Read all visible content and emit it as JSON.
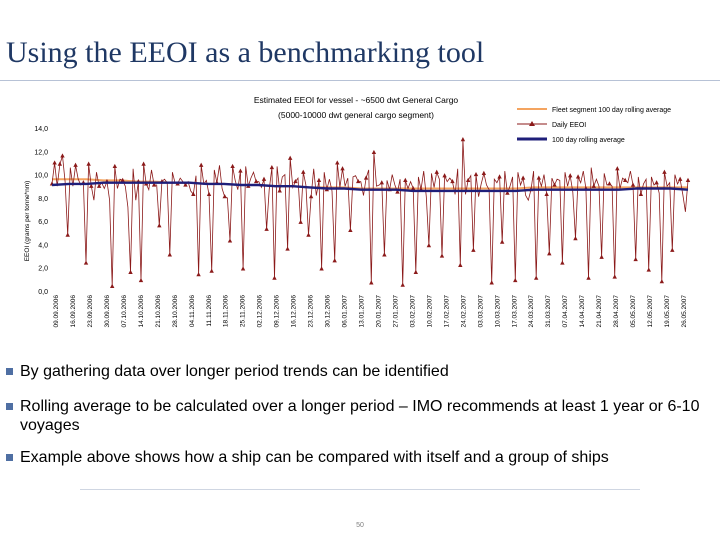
{
  "slide": {
    "title": "Using the EEOI as a benchmarking tool",
    "page_number": "50"
  },
  "bullets": [
    "By gathering data over longer period trends can be identified",
    "Rolling average to be calculated over a longer period – IMO recommends at least 1 year or 6-10 voyages",
    "Example above shows how a ship can be compared with itself and a group of ships"
  ],
  "chart_data": {
    "type": "line",
    "title": "Estimated EEOI for vessel - ~6500 dwt General Cargo",
    "subtitle": "(5000-10000 dwt general cargo segment)",
    "ylabel": "EEOI (grams per tonne*nm)",
    "xlabel": "",
    "ylim": [
      0,
      14
    ],
    "yticks": [
      "0,0",
      "2,0",
      "4,0",
      "6,0",
      "8,0",
      "10,0",
      "12,0",
      "14,0"
    ],
    "grid": false,
    "legend_position": "top-right",
    "colors": {
      "fleet_avg": "#f4a460",
      "daily": "#8b1a1a",
      "rolling_avg": "#1f1f7a"
    },
    "x_tick_labels": [
      "09.09.2006",
      "16.09.2006",
      "23.09.2006",
      "30.09.2006",
      "07.10.2006",
      "14.10.2006",
      "21.10.2006",
      "28.10.2006",
      "04.11.2006",
      "11.11.2006",
      "18.11.2006",
      "25.11.2006",
      "02.12.2006",
      "09.12.2006",
      "16.12.2006",
      "23.12.2006",
      "30.12.2006",
      "06.01.2007",
      "13.01.2007",
      "20.01.2007",
      "27.01.2007",
      "03.02.2007",
      "10.02.2007",
      "17.02.2007",
      "24.02.2007",
      "03.03.2007",
      "10.03.2007",
      "17.03.2007",
      "24.03.2007",
      "31.03.2007",
      "07.04.2007",
      "14.04.2007",
      "21.04.2007",
      "28.04.2007",
      "05.05.2007",
      "12.05.2007",
      "19.05.2007",
      "26.05.2007"
    ],
    "series": [
      {
        "name": "Fleet segment 100 day rolling average",
        "values": [
          9.6,
          9.6,
          9.6,
          9.5,
          9.5,
          9.4,
          9.4,
          9.3,
          9.3,
          9.2,
          9.2,
          9.1,
          9.1,
          9.0,
          9.0,
          8.9,
          8.9,
          8.9,
          8.8,
          8.8,
          8.8,
          8.8,
          8.8,
          8.8,
          8.8,
          8.8,
          8.8,
          8.8,
          8.9,
          8.9,
          8.9,
          8.9,
          8.9,
          8.9,
          8.9,
          8.9,
          8.9,
          8.9
        ]
      },
      {
        "name": "Daily EEOI",
        "values": [
          9.2,
          11.0,
          9.0,
          10.9,
          11.6,
          9.4,
          4.8,
          10.6,
          9.0,
          10.8,
          9.6,
          9.1,
          9.3,
          2.4,
          10.9,
          9.0,
          7.8,
          10.2,
          9.0,
          9.3,
          8.8,
          9.4,
          7.8,
          0.4,
          10.7,
          8.8,
          9.6,
          9.5,
          9.0,
          7.2,
          1.6,
          10.5,
          7.8,
          9.4,
          0.9,
          10.9,
          9.2,
          8.7,
          10.4,
          9.1,
          9.1,
          5.6,
          9.4,
          9.6,
          9.3,
          3.1,
          10.2,
          9.3,
          9.2,
          9.7,
          9.4,
          9.1,
          9.4,
          8.6,
          8.3,
          9.9,
          1.4,
          10.8,
          9.2,
          9.5,
          8.3,
          1.7,
          10.4,
          9.3,
          10.8,
          8.8,
          8.1,
          8.0,
          4.3,
          10.7,
          9.5,
          8.7,
          10.3,
          1.9,
          10.7,
          9.0,
          9.7,
          10.2,
          9.4,
          9.4,
          8.9,
          9.6,
          5.3,
          8.7,
          10.6,
          1.1,
          10.7,
          8.6,
          9.8,
          10.0,
          3.6,
          11.4,
          8.9,
          9.4,
          9.7,
          5.9,
          10.2,
          9.1,
          4.8,
          8.1,
          10.5,
          8.2,
          9.5,
          1.9,
          10.2,
          8.7,
          9.6,
          8.6,
          2.6,
          11.0,
          8.9,
          10.5,
          9.0,
          9.7,
          5.2,
          9.8,
          9.9,
          9.4,
          9.4,
          8.2,
          9.7,
          10.4,
          0.7,
          11.9,
          9.0,
          9.1,
          9.3,
          3.1,
          9.5,
          8.7,
          10.0,
          9.1,
          8.5,
          9.6,
          0.5,
          9.5,
          8.8,
          9.4,
          8.8,
          1.6,
          9.8,
          8.7,
          10.3,
          8.1,
          3.9,
          10.1,
          8.9,
          10.2,
          9.6,
          3.0,
          9.9,
          9.4,
          9.7,
          9.4,
          8.3,
          10.5,
          2.2,
          13.0,
          8.3,
          9.5,
          9.9,
          3.5,
          10.0,
          8.1,
          9.2,
          10.1,
          9.1,
          8.7,
          0.7,
          9.6,
          9.3,
          9.8,
          4.2,
          10.3,
          8.4,
          9.0,
          9.8,
          0.9,
          10.2,
          9.1,
          9.7,
          8.2,
          7.8,
          8.7,
          10.3,
          1.1,
          9.7,
          9.0,
          10.0,
          8.3,
          3.2,
          9.7,
          9.1,
          9.6,
          9.5,
          2.4,
          10.2,
          9.0,
          9.9,
          8.5,
          4.5,
          9.8,
          9.3,
          10.3,
          8.8,
          1.1,
          10.6,
          9.0,
          9.6,
          9.0,
          2.9,
          10.1,
          9.1,
          9.2,
          9.0,
          1.2,
          10.5,
          8.8,
          9.7,
          9.5,
          9.3,
          10.3,
          9.1,
          2.7,
          9.8,
          8.3,
          9.2,
          9.6,
          1.8,
          9.8,
          9.1,
          9.3,
          8.4,
          0.8,
          10.2,
          9.0,
          9.3,
          3.5,
          10.0,
          9.2,
          9.6,
          8.3,
          6.8,
          9.5
        ]
      },
      {
        "name": "100 day rolling average",
        "values": [
          9.1,
          9.2,
          9.2,
          9.3,
          9.3,
          9.3,
          9.3,
          9.3,
          9.3,
          9.2,
          9.2,
          9.1,
          9.1,
          9.0,
          9.0,
          8.9,
          8.8,
          8.8,
          8.7,
          8.7,
          8.7,
          8.6,
          8.6,
          8.6,
          8.6,
          8.6,
          8.6,
          8.6,
          8.7,
          8.7,
          8.7,
          8.7,
          8.7,
          8.7,
          8.8,
          8.8,
          8.8,
          8.7
        ]
      }
    ]
  }
}
